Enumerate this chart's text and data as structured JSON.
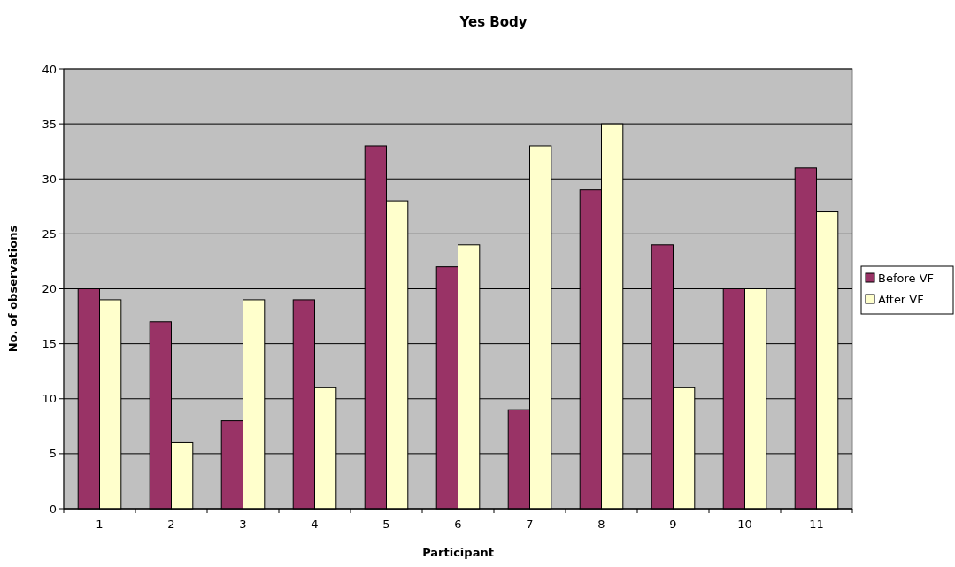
{
  "chart_data": {
    "type": "bar",
    "title": "Yes Body",
    "xlabel": "Participant",
    "ylabel": "No. of observations",
    "categories": [
      "1",
      "2",
      "3",
      "4",
      "5",
      "6",
      "7",
      "8",
      "9",
      "10",
      "11"
    ],
    "series": [
      {
        "name": "Before VF",
        "color": "#993366",
        "values": [
          20,
          17,
          8,
          19,
          33,
          22,
          9,
          29,
          24,
          20,
          31
        ]
      },
      {
        "name": "After VF",
        "color": "#ffffcc",
        "values": [
          19,
          6,
          19,
          11,
          28,
          24,
          33,
          35,
          11,
          20,
          27
        ]
      }
    ],
    "ylim": [
      0,
      40
    ],
    "yticks": [
      0,
      5,
      10,
      15,
      20,
      25,
      30,
      35,
      40
    ],
    "grid": "y",
    "legend": "right"
  }
}
